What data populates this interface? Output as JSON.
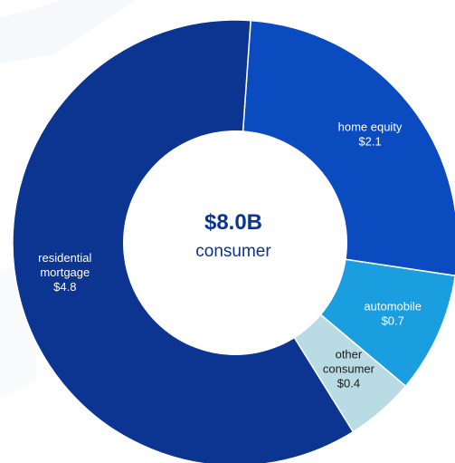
{
  "chart_data": {
    "type": "pie",
    "donut": true,
    "center": {
      "value": "$8.0B",
      "label": "consumer"
    },
    "slices": [
      {
        "lines": [
          "home equity",
          "$2.1"
        ],
        "value": 2.1,
        "color": "#0a4bc0",
        "text_color": "#ffffff"
      },
      {
        "lines": [
          "automobile",
          "$0.7"
        ],
        "value": 0.7,
        "color": "#1a9ee0",
        "text_color": "#ffffff"
      },
      {
        "lines": [
          "other",
          "consumer",
          "$0.4"
        ],
        "value": 0.4,
        "color": "#b9dbe3",
        "text_color": "#1b1b1b"
      },
      {
        "lines": [
          "residential",
          "mortgage",
          "$4.8"
        ],
        "value": 4.8,
        "color": "#0b3591",
        "text_color": "#ffffff"
      }
    ],
    "center_value_color": "#0b3591",
    "center_label_color": "#0b3591"
  }
}
